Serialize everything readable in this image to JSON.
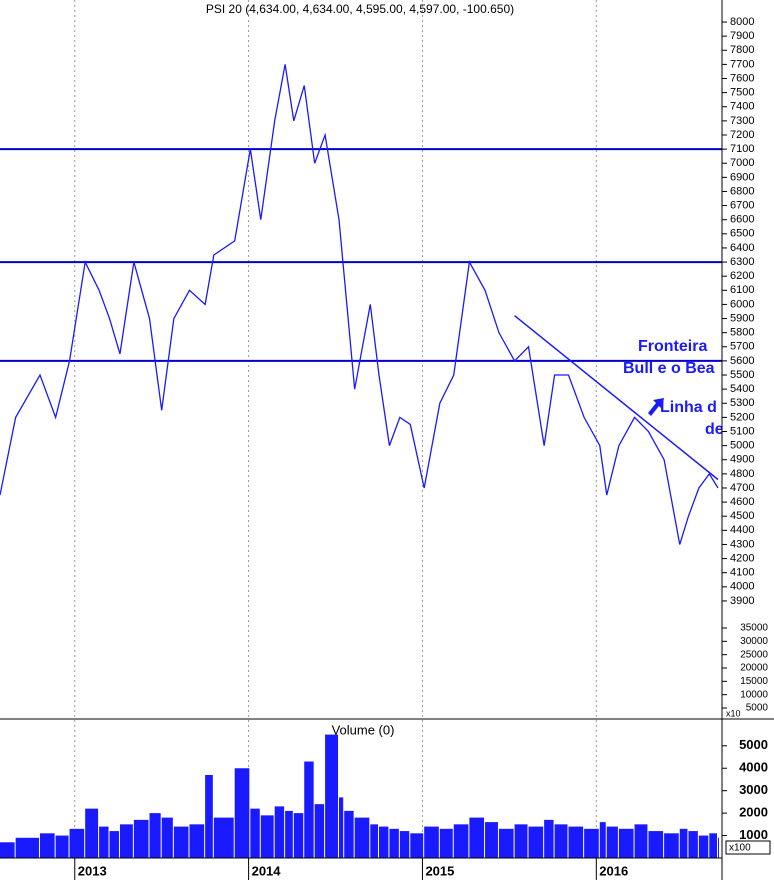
{
  "chart_data": [
    {
      "type": "line",
      "title": "PSI 20 (4,634.00, 4,634.00, 4,595.00, 4,597.00, -100.650)",
      "color": "#1a1aff",
      "x": [
        2012.57,
        2012.66,
        2012.8,
        2012.89,
        2012.97,
        2013.06,
        2013.14,
        2013.2,
        2013.26,
        2013.34,
        2013.43,
        2013.5,
        2013.57,
        2013.66,
        2013.75,
        2013.8,
        2013.92,
        2014.01,
        2014.07,
        2014.15,
        2014.21,
        2014.26,
        2014.32,
        2014.38,
        2014.44,
        2014.52,
        2014.55,
        2014.61,
        2014.7,
        2014.75,
        2014.81,
        2014.87,
        2014.93,
        2015.01,
        2015.1,
        2015.18,
        2015.27,
        2015.36,
        2015.44,
        2015.53,
        2015.61,
        2015.7,
        2015.76,
        2015.84,
        2015.93,
        2016.02,
        2016.06,
        2016.13,
        2016.22,
        2016.3,
        2016.39,
        2016.48,
        2016.53,
        2016.59,
        2016.65,
        2016.7
      ],
      "values": [
        4650,
        5200,
        5500,
        5200,
        5600,
        6300,
        6100,
        5900,
        5650,
        6300,
        5900,
        5250,
        5900,
        6100,
        6000,
        6350,
        6450,
        7100,
        6600,
        7300,
        7700,
        7300,
        7550,
        7000,
        7200,
        6600,
        6200,
        5400,
        6000,
        5500,
        5000,
        5200,
        5150,
        4700,
        5300,
        5500,
        6300,
        6100,
        5800,
        5600,
        5700,
        5000,
        5500,
        5500,
        5200,
        5000,
        4650,
        5000,
        5200,
        5100,
        4900,
        4300,
        4500,
        4700,
        4800,
        4700
      ],
      "xlim": [
        2012.57,
        2016.7
      ],
      "ylim": [
        3765,
        8156
      ],
      "yticks": [
        3900,
        4000,
        4100,
        4200,
        4300,
        4400,
        4500,
        4600,
        4700,
        4800,
        4900,
        5000,
        5100,
        5200,
        5300,
        5400,
        5500,
        5600,
        5700,
        5800,
        5900,
        6000,
        6100,
        6200,
        6300,
        6400,
        6500,
        6600,
        6700,
        6800,
        6900,
        7000,
        7100,
        7200,
        7300,
        7400,
        7500,
        7600,
        7700,
        7800,
        7900,
        8000
      ],
      "y2lim": [
        1250,
        38000
      ],
      "y2ticks": [
        5000,
        10000,
        15000,
        20000,
        25000,
        30000,
        35000
      ],
      "y2_multiplier": "x10",
      "hlines": [
        7100,
        6300,
        5600
      ],
      "hline_color": "#0000cc",
      "trendline": {
        "x": [
          2015.53,
          2016.7
        ],
        "y": [
          5920,
          4760
        ]
      },
      "annotations": [
        "Fronteira",
        "Bull e o Bea",
        "Linha d",
        "desce"
      ]
    },
    {
      "type": "bar",
      "title": "Volume (0)",
      "color": "#1a1aff",
      "x": [
        2012.57,
        2012.66,
        2012.8,
        2012.89,
        2012.97,
        2013.06,
        2013.14,
        2013.2,
        2013.26,
        2013.34,
        2013.43,
        2013.5,
        2013.57,
        2013.66,
        2013.75,
        2013.8,
        2013.92,
        2014.01,
        2014.07,
        2014.15,
        2014.21,
        2014.26,
        2014.32,
        2014.38,
        2014.44,
        2014.52,
        2014.55,
        2014.61,
        2014.7,
        2014.75,
        2014.81,
        2014.87,
        2014.93,
        2015.01,
        2015.1,
        2015.18,
        2015.27,
        2015.36,
        2015.44,
        2015.53,
        2015.61,
        2015.7,
        2015.76,
        2015.84,
        2015.93,
        2016.02,
        2016.06,
        2016.13,
        2016.22,
        2016.3,
        2016.39,
        2016.48,
        2016.53,
        2016.59,
        2016.65,
        2016.7
      ],
      "values": [
        700,
        900,
        1100,
        1000,
        1300,
        2200,
        1400,
        1200,
        1500,
        1700,
        2000,
        1800,
        1400,
        1500,
        3700,
        1800,
        4000,
        2200,
        1900,
        2300,
        2100,
        2000,
        4300,
        2400,
        5500,
        2700,
        2100,
        1800,
        1500,
        1400,
        1300,
        1200,
        1100,
        1400,
        1300,
        1500,
        1800,
        1600,
        1300,
        1500,
        1400,
        1700,
        1500,
        1400,
        1300,
        1600,
        1400,
        1300,
        1500,
        1200,
        1100,
        1300,
        1200,
        1000,
        1100,
        900
      ],
      "xlim": [
        2012.57,
        2016.7
      ],
      "xticks": [
        2013,
        2014,
        2015,
        2016
      ],
      "ylim": [
        0,
        6150
      ],
      "yticks": [
        1000,
        2000,
        3000,
        4000,
        5000
      ],
      "y_multiplier": "x100"
    }
  ]
}
